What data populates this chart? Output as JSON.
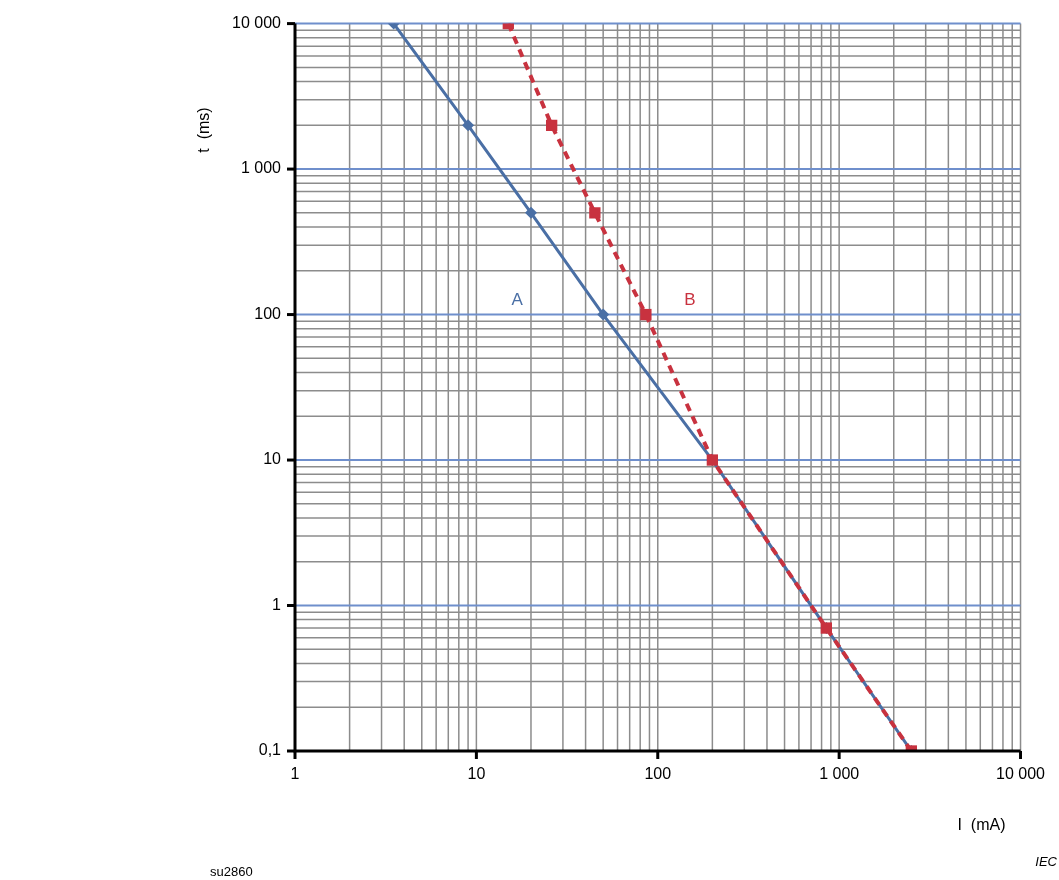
{
  "chart_data": {
    "type": "line",
    "xlabel": "I  (mA)",
    "ylabel": "t  (ms)",
    "log": "xy",
    "grid": true,
    "legend": false,
    "xlim": [
      1,
      10000
    ],
    "ylim": [
      0.1,
      10000
    ],
    "xticks": [
      1,
      10,
      100,
      {
        "value": 1000,
        "label": "1 000"
      },
      {
        "value": 10000,
        "label": "10 000"
      }
    ],
    "yticks": [
      {
        "value": 0.1,
        "label": "0,1"
      },
      1,
      10,
      100,
      {
        "value": 1000,
        "label": "1 000"
      },
      {
        "value": 10000,
        "label": "10 000"
      }
    ],
    "series": [
      {
        "name": "A",
        "color": "#4a6fa5",
        "marker": "diamond",
        "line_style": "solid",
        "x": [
          3.5,
          9,
          20,
          50,
          200,
          850,
          2500
        ],
        "values": [
          10000,
          2000,
          500,
          100,
          10,
          0.7,
          0.1
        ]
      },
      {
        "name": "B",
        "color": "#c8323f",
        "marker": "square",
        "line_style": "dashed",
        "x": [
          15,
          26,
          45,
          86,
          200,
          850,
          2500
        ],
        "values": [
          10000,
          2000,
          500,
          100,
          10,
          0.7,
          0.1
        ]
      }
    ],
    "annotations": [
      "su2860",
      "IEC"
    ]
  }
}
